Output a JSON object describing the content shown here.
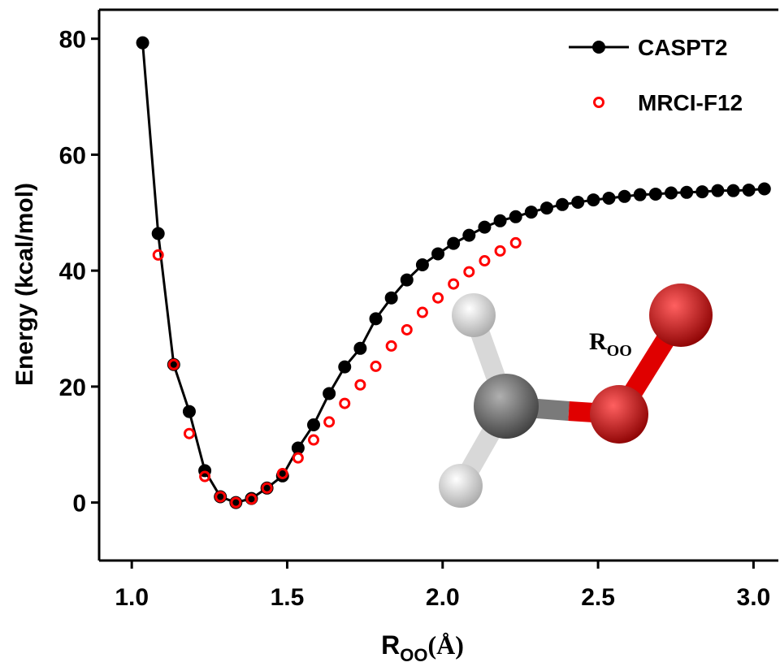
{
  "chart_data": {
    "type": "line-scatter",
    "xlabel": {
      "main": "R",
      "sub": "OO",
      "unit": "(Å)"
    },
    "ylabel": "Energy (kcal/mol)",
    "annotation": {
      "main": "R",
      "sub": "OO"
    },
    "xlim": [
      0.895,
      3.08
    ],
    "ylim": [
      -10,
      85
    ],
    "xticks": [
      {
        "value": 1,
        "label": "1.0"
      },
      1.5,
      {
        "value": 2,
        "label": "2.0"
      },
      2.5,
      {
        "value": 3,
        "label": "3.0"
      }
    ],
    "yticks": [
      0,
      20,
      40,
      60,
      80
    ],
    "legend": "top-right",
    "series": [
      {
        "name": "CASPT2",
        "color": "#000000",
        "style": "line-marker",
        "x": [
          1.035,
          1.085,
          1.135,
          1.185,
          1.235,
          1.285,
          1.335,
          1.385,
          1.435,
          1.485,
          1.535,
          1.585,
          1.635,
          1.685,
          1.735,
          1.785,
          1.835,
          1.885,
          1.935,
          1.985,
          2.035,
          2.085,
          2.135,
          2.185,
          2.235,
          2.285,
          2.335,
          2.385,
          2.435,
          2.485,
          2.535,
          2.585,
          2.635,
          2.685,
          2.735,
          2.785,
          2.835,
          2.885,
          2.935,
          2.985,
          3.035
        ],
        "values": [
          79.3,
          46.4,
          23.8,
          15.7,
          5.5,
          1.0,
          0,
          0.7,
          2.5,
          4.6,
          9.4,
          13.4,
          18.8,
          23.4,
          26.6,
          31.7,
          35.3,
          38.4,
          41.0,
          42.9,
          44.7,
          46.1,
          47.5,
          48.6,
          49.3,
          50.1,
          50.8,
          51.4,
          51.8,
          52.2,
          52.5,
          52.8,
          53.1,
          53.2,
          53.4,
          53.5,
          53.6,
          53.8,
          53.8,
          53.9,
          54.1
        ]
      },
      {
        "name": "MRCI-F12",
        "color": "#ff0000",
        "style": "marker-open",
        "x": [
          1.085,
          1.135,
          1.185,
          1.235,
          1.285,
          1.335,
          1.385,
          1.435,
          1.485,
          1.535,
          1.585,
          1.635,
          1.685,
          1.735,
          1.785,
          1.835,
          1.885,
          1.935,
          1.985,
          2.035,
          2.085,
          2.135,
          2.185,
          2.235
        ],
        "values": [
          42.7,
          23.8,
          11.9,
          4.5,
          1.0,
          0,
          0.6,
          2.5,
          5.0,
          7.7,
          10.8,
          13.9,
          17.1,
          20.3,
          23.5,
          27.0,
          29.8,
          32.8,
          35.3,
          37.7,
          39.8,
          41.7,
          43.4,
          44.8
        ]
      }
    ]
  }
}
